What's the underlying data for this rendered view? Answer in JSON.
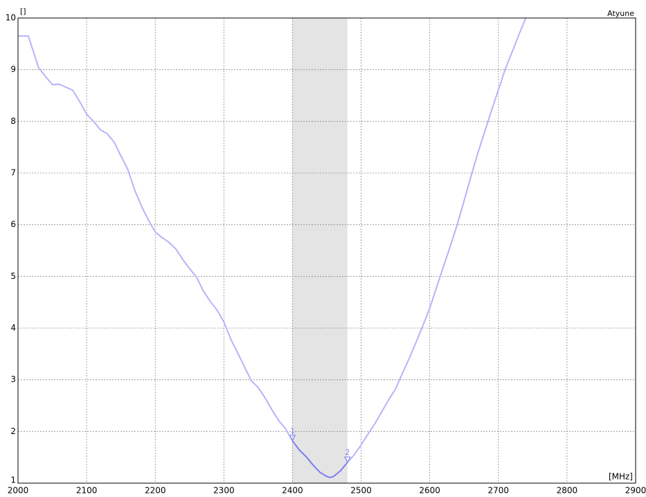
{
  "chart_data": {
    "type": "line",
    "title": "Atyune",
    "x_label": "[MHz]",
    "y_label": "[]",
    "xlim": [
      2000,
      2900
    ],
    "xticks": [
      2000,
      2100,
      2200,
      2300,
      2400,
      2500,
      2600,
      2700,
      2800,
      2900
    ],
    "ylim": [
      1,
      10
    ],
    "yticks": [
      1,
      2,
      3,
      4,
      5,
      6,
      7,
      8,
      9,
      10
    ],
    "grid": true,
    "band": [
      2400,
      2480
    ],
    "band_color": "#e4e4e4",
    "highlight_color": "#7f7ff0",
    "x": [
      2000,
      2010,
      2015,
      2030,
      2040,
      2050,
      2060,
      2080,
      2090,
      2100,
      2110,
      2120,
      2130,
      2140,
      2150,
      2160,
      2170,
      2180,
      2190,
      2200,
      2210,
      2220,
      2230,
      2240,
      2250,
      2260,
      2270,
      2280,
      2290,
      2300,
      2310,
      2320,
      2330,
      2340,
      2350,
      2360,
      2370,
      2380,
      2390,
      2400,
      2410,
      2420,
      2430,
      2440,
      2450,
      2455,
      2460,
      2470,
      2480,
      2490,
      2500,
      2510,
      2520,
      2530,
      2540,
      2550,
      2560,
      2570,
      2580,
      2590,
      2600,
      2610,
      2620,
      2630,
      2640,
      2650,
      2660,
      2670,
      2680,
      2690,
      2700,
      2710,
      2720,
      2730,
      2740
    ],
    "series": [
      {
        "color": "#b4b4fa",
        "values": [
          9.65,
          9.65,
          9.65,
          9.04,
          8.87,
          8.71,
          8.72,
          8.6,
          8.38,
          8.14,
          8.0,
          7.84,
          7.76,
          7.6,
          7.33,
          7.07,
          6.67,
          6.36,
          6.09,
          5.86,
          5.75,
          5.66,
          5.53,
          5.33,
          5.15,
          4.99,
          4.72,
          4.52,
          4.35,
          4.12,
          3.79,
          3.52,
          3.25,
          2.98,
          2.85,
          2.65,
          2.42,
          2.21,
          2.05,
          1.82,
          1.64,
          1.51,
          1.35,
          1.21,
          1.13,
          1.11,
          1.13,
          1.24,
          1.4,
          1.55,
          1.74,
          1.95,
          2.15,
          2.38,
          2.61,
          2.82,
          3.12,
          3.41,
          3.72,
          4.05,
          4.39,
          4.79,
          5.19,
          5.59,
          6.0,
          6.46,
          6.93,
          7.38,
          7.8,
          8.21,
          8.61,
          9.01,
          9.34,
          9.68,
          10.0
        ]
      }
    ],
    "markers": [
      {
        "label": "1",
        "x": 2400,
        "value": 1.82
      },
      {
        "label": "2",
        "x": 2480,
        "value": 1.4
      }
    ]
  }
}
